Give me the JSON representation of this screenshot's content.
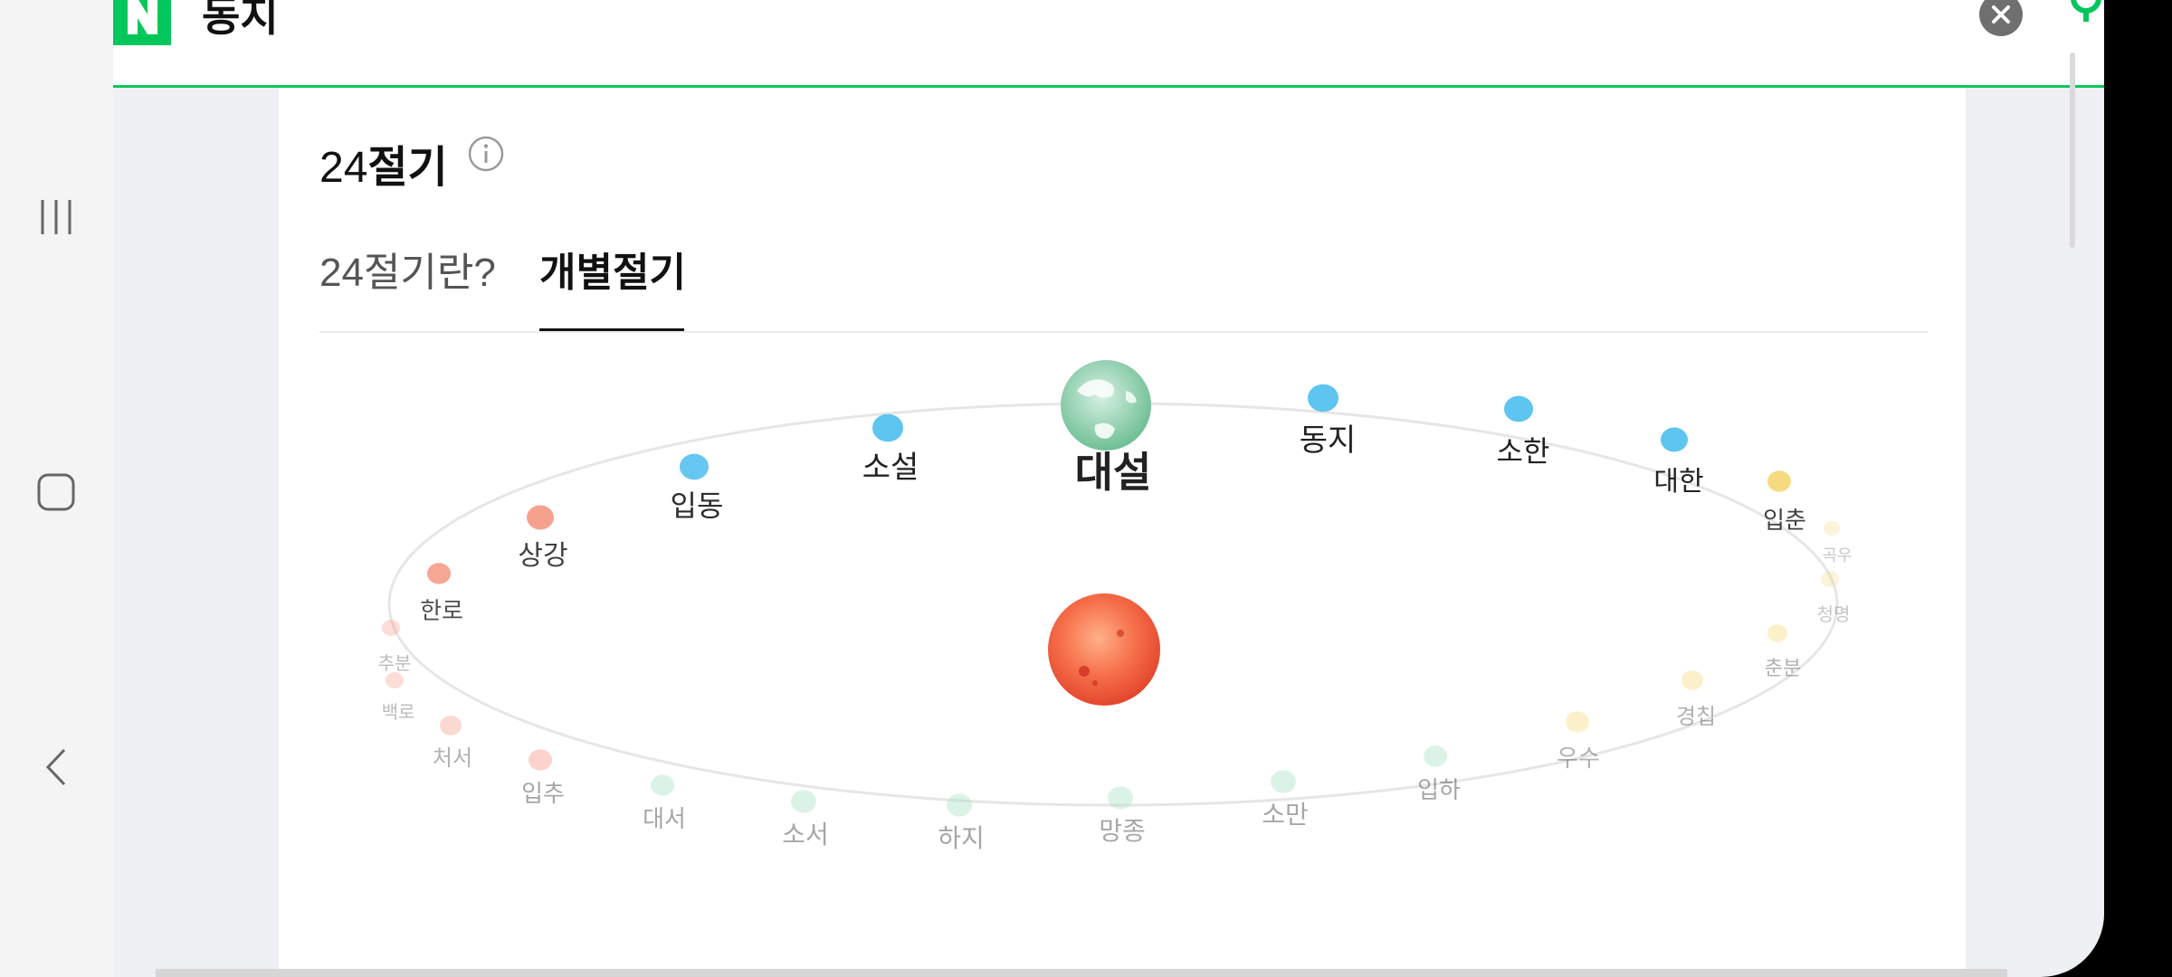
{
  "header": {
    "logo_letter": "N",
    "title": "동지",
    "brand_color": "#03c75a"
  },
  "card": {
    "title_number": "24",
    "title_text": "절기",
    "info_icon": "info-circle-icon"
  },
  "tabs": [
    {
      "label": "24절기란?",
      "selected": false
    },
    {
      "label": "개별절기",
      "selected": true
    }
  ],
  "orbit": {
    "center_icon": "sun-icon",
    "earth_icon": "earth-icon",
    "current_term": "대설",
    "terms": [
      {
        "name": "대설",
        "season": "winter",
        "highlighted": true
      },
      {
        "name": "동지",
        "season": "winter"
      },
      {
        "name": "소한",
        "season": "winter"
      },
      {
        "name": "대한",
        "season": "winter"
      },
      {
        "name": "입춘",
        "season": "spring"
      },
      {
        "name": "우수",
        "season": "spring"
      },
      {
        "name": "경칩",
        "season": "spring"
      },
      {
        "name": "춘분",
        "season": "spring"
      },
      {
        "name": "청명",
        "season": "spring"
      },
      {
        "name": "곡우",
        "season": "spring"
      },
      {
        "name": "입하",
        "season": "summer"
      },
      {
        "name": "소만",
        "season": "summer"
      },
      {
        "name": "망종",
        "season": "summer"
      },
      {
        "name": "하지",
        "season": "summer"
      },
      {
        "name": "소서",
        "season": "summer"
      },
      {
        "name": "대서",
        "season": "summer"
      },
      {
        "name": "입추",
        "season": "autumn"
      },
      {
        "name": "처서",
        "season": "autumn"
      },
      {
        "name": "백로",
        "season": "autumn"
      },
      {
        "name": "추분",
        "season": "autumn"
      },
      {
        "name": "한로",
        "season": "autumn"
      },
      {
        "name": "상강",
        "season": "autumn"
      },
      {
        "name": "입동",
        "season": "winter"
      },
      {
        "name": "소설",
        "season": "winter"
      }
    ],
    "season_colors": {
      "winter": "#5ec4f0",
      "spring": "#f5d46a",
      "summer": "#a6e0c4",
      "autumn": "#f4907a"
    }
  }
}
